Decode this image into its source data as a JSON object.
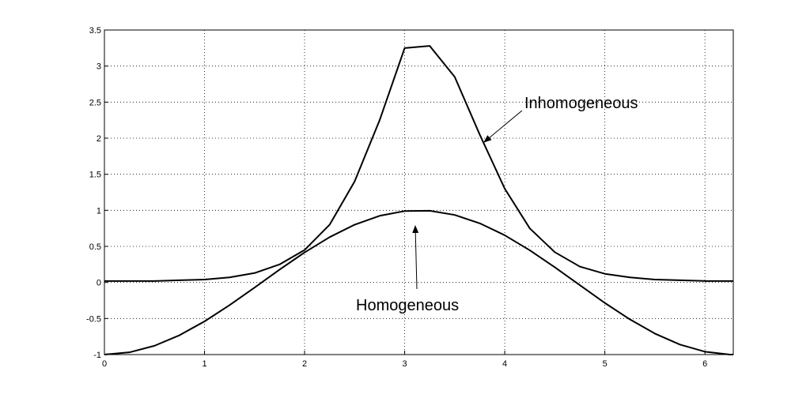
{
  "chart_data": {
    "type": "line",
    "x": [
      0,
      0.25,
      0.5,
      0.75,
      1,
      1.25,
      1.5,
      1.75,
      2,
      2.25,
      2.5,
      2.75,
      3,
      3.25,
      3.5,
      3.75,
      4,
      4.25,
      4.5,
      4.75,
      5,
      5.25,
      5.5,
      5.75,
      6,
      6.25,
      6.2832
    ],
    "series": [
      {
        "name": "Inhomogeneous",
        "color": "#000000",
        "values": [
          0.02,
          0.02,
          0.02,
          0.03,
          0.04,
          0.07,
          0.13,
          0.25,
          0.45,
          0.8,
          1.4,
          2.25,
          3.25,
          3.28,
          2.85,
          2.05,
          1.3,
          0.75,
          0.42,
          0.22,
          0.12,
          0.07,
          0.04,
          0.03,
          0.02,
          0.02,
          0.02
        ]
      },
      {
        "name": "Homogeneous",
        "color": "#000000",
        "values": [
          -1,
          -0.969,
          -0.878,
          -0.732,
          -0.54,
          -0.315,
          -0.071,
          0.178,
          0.416,
          0.628,
          0.801,
          0.924,
          0.99,
          0.994,
          0.936,
          0.82,
          0.654,
          0.446,
          0.211,
          -0.037,
          -0.284,
          -0.512,
          -0.709,
          -0.861,
          -0.96,
          -1,
          -1
        ]
      }
    ],
    "xlim": [
      0,
      6.2832
    ],
    "ylim": [
      -1,
      3.5
    ],
    "xticks": [
      0,
      1,
      2,
      3,
      4,
      5,
      6
    ],
    "yticks": [
      -1,
      -0.5,
      0,
      0.5,
      1,
      1.5,
      2,
      2.5,
      3,
      3.5
    ],
    "grid": true
  }
}
